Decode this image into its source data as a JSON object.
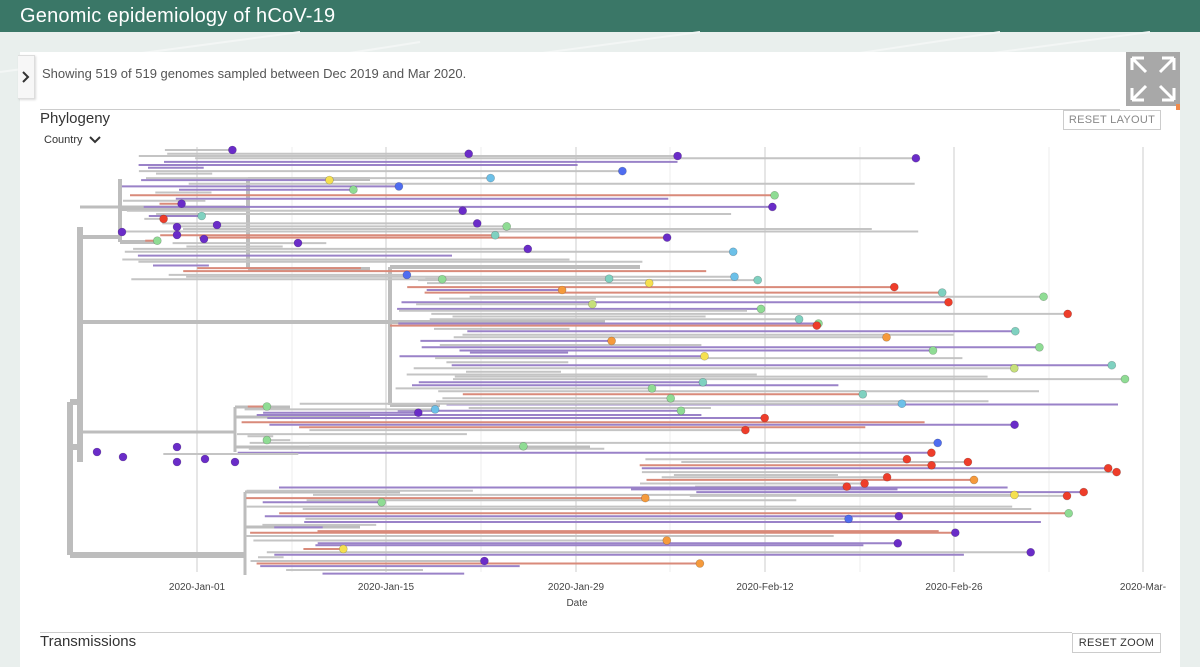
{
  "header": {
    "title": "Genomic epidemiology of hCoV-19"
  },
  "info": {
    "text": "Showing 519 of 519 genomes sampled between Dec 2019 and Mar 2020."
  },
  "phylogeny": {
    "title": "Phylogeny",
    "reset_label": "RESET LAYOUT",
    "color_by_label": "Country",
    "axis_title": "Date",
    "ticks": [
      {
        "label": "2020-Jan-01"
      },
      {
        "label": "2020-Jan-15"
      },
      {
        "label": "2020-Jan-29"
      },
      {
        "label": "2020-Feb-12"
      },
      {
        "label": "2020-Feb-26"
      },
      {
        "label": "2020-Mar-"
      }
    ]
  },
  "transmissions": {
    "title": "Transmissions",
    "reset_label": "RESET ZOOM"
  },
  "colors": {
    "header": "#3a7767",
    "purple": "#6a2cc8",
    "blue": "#4f6df0",
    "lightblue": "#6cc0e8",
    "teal": "#7fd1c0",
    "green": "#8fdc94",
    "lime": "#c6e07a",
    "yellow": "#f5e050",
    "orange": "#f59a3c",
    "red": "#ee3d2a"
  }
}
